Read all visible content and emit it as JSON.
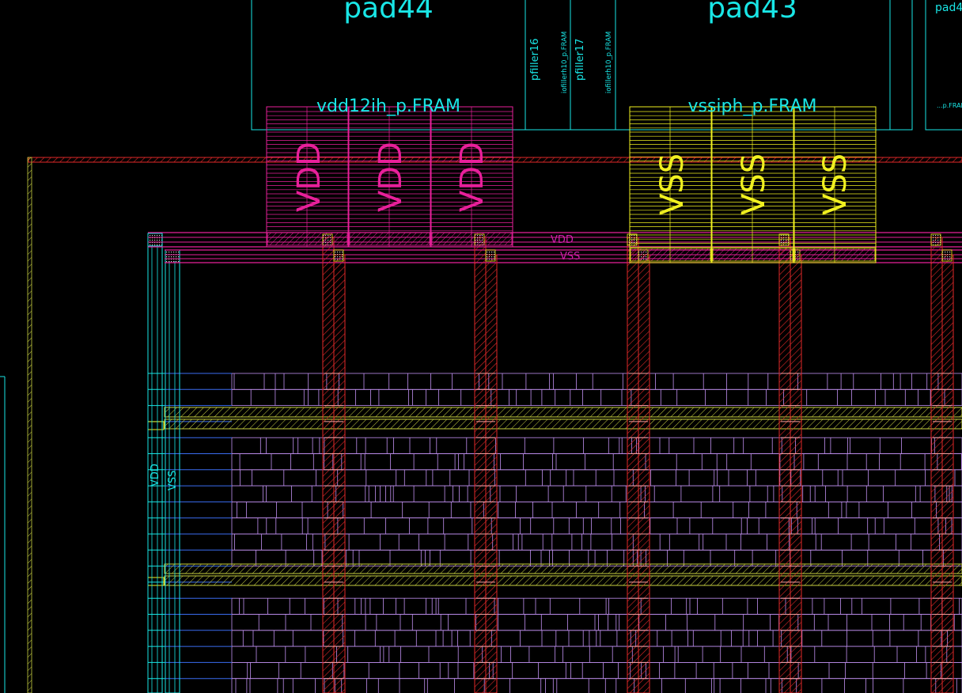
{
  "pads": [
    {
      "name": "pad44"
    },
    {
      "name": "pad43"
    },
    {
      "name": "pad4"
    }
  ],
  "fillers": [
    {
      "name": "pfiller16",
      "cell": "iofillerh10_p.FRAM"
    },
    {
      "name": "pfiller17",
      "cell": "iofillerh10_p.FRAM"
    }
  ],
  "edge_cell_label": "...p.FRAM",
  "power_pads": [
    {
      "cell": "vdd12ih_p.FRAM",
      "net": "VDD"
    },
    {
      "cell": "vssiph_p.FRAM",
      "net": "VSS"
    }
  ],
  "rings": {
    "vdd_label": "VDD",
    "vss_label": "VSS"
  },
  "colors": {
    "cell_outline": "#19e6e6",
    "vdd_pad": "#e8209a",
    "vss_pad": "#f0f020",
    "power_stripe": "#e02828",
    "std_cell": "#c090f0",
    "row_rail": "#3a6cf0"
  }
}
